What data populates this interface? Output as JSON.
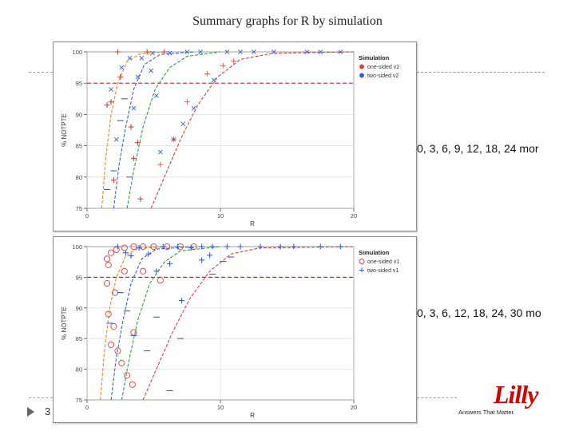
{
  "slide": {
    "title": "Summary graphs for R by simulation",
    "slide_number": "3",
    "side_text_1": "0, 3, 6, 9, 12, 18, 24 mor",
    "side_text_2": "0, 3, 6, 12, 18, 24, 30 mo",
    "logo_text": "Lilly",
    "logo_tagline": "Answers That Matter."
  },
  "colors": {
    "red": "#d94040",
    "green": "#2e9e3e",
    "blue": "#3a5fcd",
    "orange": "#e08a2a",
    "purple": "#8a3a8a",
    "grid": "#d9d9d9",
    "threshold": "#d62728"
  },
  "chart_data": [
    {
      "type": "scatter",
      "xlabel": "R",
      "ylabel": "% NOTPTE",
      "xlim": [
        0,
        20
      ],
      "ylim": [
        75,
        100
      ],
      "xticks": [
        0,
        10,
        20
      ],
      "xtick_labels": [
        "0",
        "10",
        "20"
      ],
      "yticks": [
        75,
        80,
        85,
        90,
        95,
        100
      ],
      "threshold": 95,
      "legend": {
        "title": "Simulation",
        "placement": "right",
        "entries": [
          "one-sided v2",
          "two-sided v2"
        ]
      },
      "curves": [
        {
          "color": "orange",
          "points": [
            [
              1.1,
              75
            ],
            [
              1.4,
              83
            ],
            [
              1.8,
              90
            ],
            [
              2.3,
              95
            ],
            [
              3,
              98.5
            ],
            [
              4,
              99.7
            ],
            [
              6,
              100
            ]
          ]
        },
        {
          "color": "blue",
          "points": [
            [
              2.0,
              75
            ],
            [
              2.4,
              82
            ],
            [
              2.9,
              88
            ],
            [
              3.5,
              94
            ],
            [
              4.3,
              98
            ],
            [
              5.5,
              99.6
            ],
            [
              8,
              100
            ]
          ]
        },
        {
          "color": "green",
          "points": [
            [
              3.0,
              75
            ],
            [
              3.5,
              81
            ],
            [
              4.2,
              88
            ],
            [
              5.1,
              94
            ],
            [
              6.2,
              97.5
            ],
            [
              7.5,
              99.3
            ],
            [
              10,
              100
            ]
          ]
        },
        {
          "color": "red",
          "points": [
            [
              4.8,
              75
            ],
            [
              5.8,
              80
            ],
            [
              7,
              86
            ],
            [
              8.3,
              91.5
            ],
            [
              9.8,
              96
            ],
            [
              11.5,
              98.8
            ],
            [
              14,
              99.8
            ],
            [
              20,
              100
            ]
          ]
        }
      ],
      "markers": [
        {
          "color": "red",
          "shape": "plus",
          "points": [
            [
              1.5,
              91.5
            ],
            [
              1.8,
              92
            ],
            [
              2.3,
              100
            ],
            [
              2.5,
              96
            ],
            [
              3.3,
              88
            ],
            [
              3.8,
              85.5
            ],
            [
              4.5,
              100
            ],
            [
              5.8,
              100
            ],
            [
              4,
              76.5
            ],
            [
              2,
              79.5
            ],
            [
              3.5,
              83
            ]
          ]
        },
        {
          "color": "blue",
          "shape": "cross",
          "points": [
            [
              1.8,
              94
            ],
            [
              2.6,
              97.5
            ],
            [
              3.2,
              99
            ],
            [
              3.5,
              91
            ],
            [
              4.1,
              99
            ],
            [
              4.9,
              99.8
            ],
            [
              5.2,
              93
            ],
            [
              6.2,
              99.8
            ],
            [
              7.5,
              100
            ],
            [
              8.5,
              100
            ],
            [
              10.5,
              100
            ],
            [
              11.5,
              100
            ],
            [
              12.5,
              100
            ],
            [
              14,
              100
            ],
            [
              16.5,
              100
            ],
            [
              17.5,
              100
            ],
            [
              19,
              100
            ],
            [
              5.5,
              84
            ],
            [
              6.5,
              86
            ],
            [
              7.2,
              88.5
            ],
            [
              4.8,
              97
            ],
            [
              8,
              91
            ],
            [
              2.2,
              86
            ],
            [
              9.5,
              95.5
            ],
            [
              3.8,
              96
            ]
          ]
        },
        {
          "color": "blue",
          "shape": "dash",
          "points": [
            [
              1.5,
              78
            ],
            [
              2,
              81
            ],
            [
              2.5,
              89
            ],
            [
              2.8,
              92.5
            ],
            [
              3.2,
              80
            ]
          ]
        },
        {
          "color": "red",
          "shape": "plus-thin",
          "points": [
            [
              6.5,
              86
            ],
            [
              7.5,
              92
            ],
            [
              9,
              96.5
            ],
            [
              10.2,
              97.8
            ],
            [
              11,
              98.5
            ],
            [
              5.5,
              82
            ]
          ]
        }
      ]
    },
    {
      "type": "scatter",
      "xlabel": "R",
      "ylabel": "% NOTPTE",
      "xlim": [
        0,
        20
      ],
      "ylim": [
        75,
        100
      ],
      "xticks": [
        0,
        10,
        20
      ],
      "xtick_labels": [
        "0",
        "10",
        "20"
      ],
      "yticks": [
        75,
        80,
        85,
        90,
        95,
        100
      ],
      "threshold": 95,
      "legend": {
        "title": "Simulation",
        "placement": "right",
        "entries": [
          "one-sided v1",
          "two-sided v1"
        ]
      },
      "curves": [
        {
          "color": "orange",
          "points": [
            [
              1.0,
              75
            ],
            [
              1.3,
              83
            ],
            [
              1.7,
              90
            ],
            [
              2.2,
              95
            ],
            [
              2.9,
              98.5
            ],
            [
              3.8,
              99.7
            ],
            [
              6,
              100
            ]
          ]
        },
        {
          "color": "blue",
          "points": [
            [
              1.8,
              75
            ],
            [
              2.2,
              82
            ],
            [
              2.7,
              88
            ],
            [
              3.3,
              94
            ],
            [
              4.1,
              98
            ],
            [
              5.2,
              99.6
            ],
            [
              8,
              100
            ]
          ]
        },
        {
          "color": "green",
          "points": [
            [
              2.6,
              75
            ],
            [
              3.1,
              81
            ],
            [
              3.8,
              88
            ],
            [
              4.7,
              94
            ],
            [
              5.8,
              97.5
            ],
            [
              7,
              99.3
            ],
            [
              10,
              100
            ]
          ]
        },
        {
          "color": "red",
          "points": [
            [
              4.2,
              75
            ],
            [
              5.2,
              80
            ],
            [
              6.4,
              86
            ],
            [
              7.7,
              91.5
            ],
            [
              9.2,
              96
            ],
            [
              10.8,
              98.8
            ],
            [
              13,
              99.8
            ],
            [
              20,
              100
            ]
          ]
        }
      ],
      "markers": [
        {
          "color": "red",
          "shape": "circle",
          "points": [
            [
              1.5,
              98
            ],
            [
              1.8,
              99
            ],
            [
              2.2,
              99.5
            ],
            [
              2.8,
              99.8
            ],
            [
              3.5,
              100
            ],
            [
              4.2,
              100
            ],
            [
              5,
              100
            ],
            [
              6,
              100
            ],
            [
              7,
              100
            ],
            [
              8,
              100
            ],
            [
              1.5,
              94
            ],
            [
              2.1,
              92.5
            ],
            [
              1.6,
              89
            ],
            [
              2,
              87
            ],
            [
              1.8,
              84
            ],
            [
              2.3,
              83
            ],
            [
              2.6,
              81
            ],
            [
              3,
              79
            ],
            [
              3.4,
              77.5
            ],
            [
              4.2,
              96
            ],
            [
              5.5,
              94.5
            ],
            [
              1.6,
              97
            ],
            [
              3.5,
              86
            ],
            [
              2.8,
              96
            ]
          ]
        },
        {
          "color": "blue",
          "shape": "plus",
          "points": [
            [
              2.3,
              100
            ],
            [
              2.9,
              99
            ],
            [
              3.3,
              98.5
            ],
            [
              3.9,
              99.8
            ],
            [
              4.6,
              98.8
            ],
            [
              5.7,
              100
            ],
            [
              6.8,
              100
            ],
            [
              7.8,
              99.8
            ],
            [
              8.6,
              100
            ],
            [
              9.4,
              100
            ],
            [
              10.5,
              100
            ],
            [
              11.5,
              100
            ],
            [
              13,
              100
            ],
            [
              14.5,
              100
            ],
            [
              15.5,
              100
            ],
            [
              17.5,
              100
            ],
            [
              19,
              100
            ],
            [
              5.2,
              96
            ],
            [
              6.2,
              97.2
            ],
            [
              7.1,
              91.2
            ],
            [
              8.6,
              97.8
            ],
            [
              9.2,
              98.6
            ]
          ]
        },
        {
          "color": "blue",
          "shape": "dash",
          "points": [
            [
              2.5,
              92.5
            ],
            [
              3.0,
              89.5
            ],
            [
              3.5,
              85.5
            ],
            [
              1.7,
              87.5
            ],
            [
              4.5,
              83
            ],
            [
              9.4,
              95.5
            ],
            [
              10.2,
              97.6
            ],
            [
              10.8,
              98.3
            ],
            [
              5.2,
              88.5
            ],
            [
              7,
              85
            ],
            [
              6.2,
              76.5
            ]
          ]
        }
      ]
    }
  ]
}
